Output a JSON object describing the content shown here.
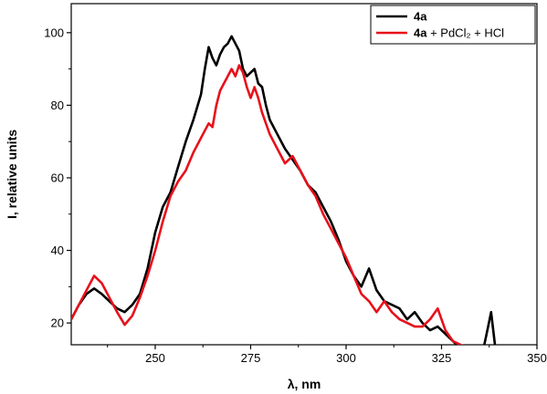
{
  "chart_data": {
    "type": "line",
    "xlabel": "λ, nm",
    "ylabel": "I, relative units",
    "xlim": [
      228,
      350
    ],
    "ylim": [
      14,
      108
    ],
    "x_ticks": [
      250,
      275,
      300,
      325,
      350
    ],
    "y_ticks": [
      20,
      40,
      60,
      80,
      100
    ],
    "grid": false,
    "legend": {
      "placement": "top-right"
    },
    "series": [
      {
        "name_bold": "4a",
        "name_rest": "",
        "color": "#000000",
        "points": [
          [
            228,
            21
          ],
          [
            230,
            25
          ],
          [
            232,
            28
          ],
          [
            234,
            29.5
          ],
          [
            236,
            28
          ],
          [
            238,
            26
          ],
          [
            240,
            24
          ],
          [
            242,
            23
          ],
          [
            244,
            25
          ],
          [
            246,
            28
          ],
          [
            248,
            35
          ],
          [
            250,
            45
          ],
          [
            252,
            52
          ],
          [
            254,
            56
          ],
          [
            256,
            63
          ],
          [
            258,
            70
          ],
          [
            260,
            76
          ],
          [
            262,
            83
          ],
          [
            263,
            90
          ],
          [
            264,
            96
          ],
          [
            265,
            93
          ],
          [
            266,
            91
          ],
          [
            267,
            94
          ],
          [
            268,
            96
          ],
          [
            269,
            97
          ],
          [
            270,
            99
          ],
          [
            271,
            97
          ],
          [
            272,
            95
          ],
          [
            273,
            90
          ],
          [
            274,
            88
          ],
          [
            275,
            89
          ],
          [
            276,
            90
          ],
          [
            277,
            86
          ],
          [
            278,
            85
          ],
          [
            279,
            80
          ],
          [
            280,
            76
          ],
          [
            282,
            72
          ],
          [
            284,
            68
          ],
          [
            286,
            65
          ],
          [
            288,
            62
          ],
          [
            290,
            58
          ],
          [
            292,
            56
          ],
          [
            294,
            52
          ],
          [
            296,
            48
          ],
          [
            298,
            43
          ],
          [
            300,
            37
          ],
          [
            302,
            33
          ],
          [
            304,
            30
          ],
          [
            306,
            35
          ],
          [
            308,
            29
          ],
          [
            310,
            26
          ],
          [
            312,
            25
          ],
          [
            314,
            24
          ],
          [
            316,
            21
          ],
          [
            318,
            23
          ],
          [
            320,
            20
          ],
          [
            322,
            18
          ],
          [
            324,
            19
          ],
          [
            326,
            17
          ],
          [
            328,
            15
          ],
          [
            330,
            13
          ],
          [
            332,
            13
          ],
          [
            334,
            13
          ],
          [
            336,
            13
          ],
          [
            337,
            18
          ],
          [
            338,
            23
          ],
          [
            339,
            14
          ],
          [
            340,
            12
          ],
          [
            342,
            12
          ],
          [
            344,
            13
          ]
        ]
      },
      {
        "name_bold": "4a",
        "name_rest": " + PdCl₂ + HCl",
        "color": "#e8101a",
        "points": [
          [
            228,
            21
          ],
          [
            230,
            25
          ],
          [
            232,
            29
          ],
          [
            234,
            33
          ],
          [
            236,
            31
          ],
          [
            238,
            27
          ],
          [
            240,
            23
          ],
          [
            242,
            19.5
          ],
          [
            244,
            22
          ],
          [
            246,
            27
          ],
          [
            248,
            33
          ],
          [
            250,
            40
          ],
          [
            252,
            48
          ],
          [
            254,
            55
          ],
          [
            256,
            59
          ],
          [
            258,
            62
          ],
          [
            260,
            67
          ],
          [
            262,
            71
          ],
          [
            264,
            75
          ],
          [
            265,
            74
          ],
          [
            266,
            80
          ],
          [
            267,
            84
          ],
          [
            268,
            86
          ],
          [
            269,
            88
          ],
          [
            270,
            90
          ],
          [
            271,
            88
          ],
          [
            272,
            91
          ],
          [
            273,
            89
          ],
          [
            274,
            85
          ],
          [
            275,
            82
          ],
          [
            276,
            85
          ],
          [
            277,
            82
          ],
          [
            278,
            78
          ],
          [
            279,
            75
          ],
          [
            280,
            72
          ],
          [
            282,
            68
          ],
          [
            284,
            64
          ],
          [
            286,
            66
          ],
          [
            288,
            62
          ],
          [
            290,
            58
          ],
          [
            292,
            55
          ],
          [
            294,
            50
          ],
          [
            296,
            46
          ],
          [
            298,
            42
          ],
          [
            300,
            38
          ],
          [
            302,
            33
          ],
          [
            304,
            28
          ],
          [
            306,
            26
          ],
          [
            308,
            23
          ],
          [
            310,
            26
          ],
          [
            312,
            23
          ],
          [
            314,
            21
          ],
          [
            316,
            20
          ],
          [
            318,
            19
          ],
          [
            320,
            19
          ],
          [
            322,
            21
          ],
          [
            324,
            24
          ],
          [
            326,
            18
          ],
          [
            328,
            15
          ],
          [
            330,
            14
          ],
          [
            332,
            13
          ]
        ]
      }
    ]
  }
}
